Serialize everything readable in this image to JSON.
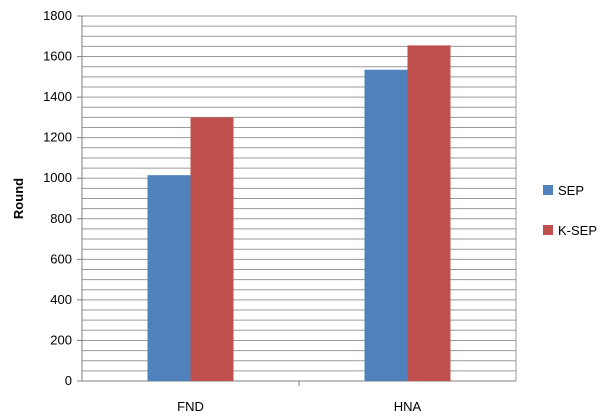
{
  "chart_data": {
    "type": "bar",
    "title": "",
    "xlabel": "",
    "ylabel": "Round",
    "categories": [
      "FND",
      "HNA"
    ],
    "series": [
      {
        "name": "SEP",
        "values": [
          1015,
          1535
        ],
        "color": "#4F81BD"
      },
      {
        "name": "K-SEP",
        "values": [
          1300,
          1655
        ],
        "color": "#C0504D"
      }
    ],
    "ylim": [
      0,
      1800
    ],
    "yticks": [
      0,
      200,
      400,
      600,
      800,
      1000,
      1200,
      1400,
      1600,
      1800
    ],
    "minor_step": 50,
    "grid": true,
    "legend": "right"
  }
}
